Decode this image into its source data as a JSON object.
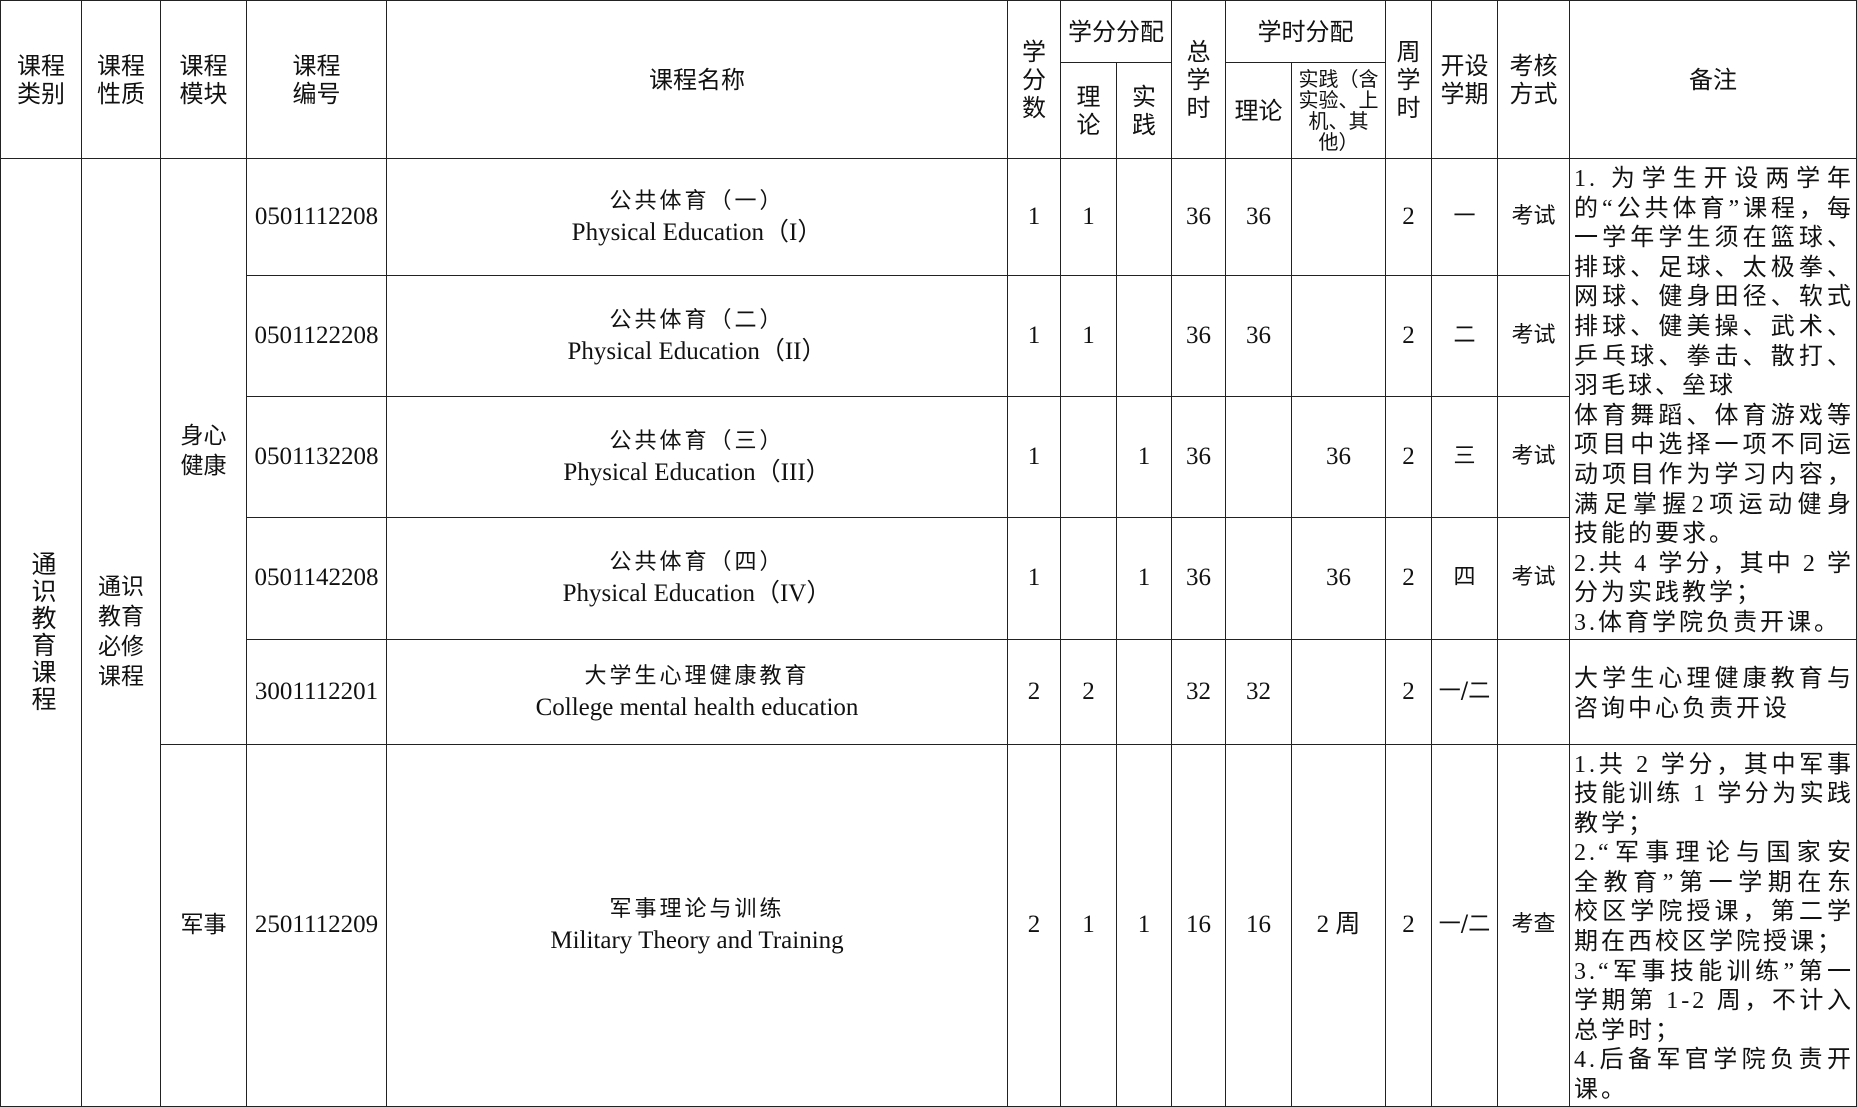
{
  "header": {
    "category": "课程类别",
    "nature": "课程性质",
    "module": "课程模块",
    "code": "课程编号",
    "name": "课程名称",
    "credits": "学分数",
    "credit_split": "学分分配",
    "credit_theory": "理论",
    "credit_practice": "实践",
    "total_hours": "总学时",
    "hour_split": "学时分配",
    "hour_theory": "理论",
    "hour_practice": "实践（含实验、上机、其他）",
    "weekly_hours": "周学时",
    "semester": "开设学期",
    "assessment": "考核方式",
    "remarks": "备注"
  },
  "category": "通识教育课程",
  "nature": "通识教育必修课程",
  "modules": [
    "身心健康",
    "军事"
  ],
  "rows": [
    {
      "code": "0501112208",
      "name_cn": "公共体育（一）",
      "name_en": "Physical Education（I）",
      "credits": "1",
      "c_theory": "1",
      "c_practice": "",
      "total": "36",
      "h_theory": "36",
      "h_practice": "",
      "weekly": "2",
      "semester": "一",
      "assessment": "考试"
    },
    {
      "code": "0501122208",
      "name_cn": "公共体育（二）",
      "name_en": "Physical Education（II）",
      "credits": "1",
      "c_theory": "1",
      "c_practice": "",
      "total": "36",
      "h_theory": "36",
      "h_practice": "",
      "weekly": "2",
      "semester": "二",
      "assessment": "考试"
    },
    {
      "code": "0501132208",
      "name_cn": "公共体育（三）",
      "name_en": "Physical Education（III）",
      "credits": "1",
      "c_theory": "",
      "c_practice": "1",
      "total": "36",
      "h_theory": "",
      "h_practice": "36",
      "weekly": "2",
      "semester": "三",
      "assessment": "考试"
    },
    {
      "code": "0501142208",
      "name_cn": "公共体育（四）",
      "name_en": "Physical Education（IV）",
      "credits": "1",
      "c_theory": "",
      "c_practice": "1",
      "total": "36",
      "h_theory": "",
      "h_practice": "36",
      "weekly": "2",
      "semester": "四",
      "assessment": "考试"
    },
    {
      "code": "3001112201",
      "name_cn": "大学生心理健康教育",
      "name_en": "College mental health education",
      "credits": "2",
      "c_theory": "2",
      "c_practice": "",
      "total": "32",
      "h_theory": "32",
      "h_practice": "",
      "weekly": "2",
      "semester": "一/二",
      "assessment": ""
    },
    {
      "code": "2501112209",
      "name_cn": "军事理论与训练",
      "name_en": "Military Theory and Training",
      "credits": "2",
      "c_theory": "1",
      "c_practice": "1",
      "total": "16",
      "h_theory": "16",
      "h_practice": "2 周",
      "weekly": "2",
      "semester": "一/二",
      "assessment": "考查"
    }
  ],
  "remarks": {
    "pe": "1. 为学生开设两学年的“公共体育”课程，每一学年学生须在篮球、排球、足球、太极拳、网球、健身田径、软式排球、健美操、武术、乒乓球、拳击、散打、羽毛球、垒球\n体育舞蹈、体育游戏等项目中选择一项不同运动项目作为学习内容，满足掌握2项运动健身技能的要求。\n2.共 4 学分，其中 2 学分为实践教学；\n3.体育学院负责开课。",
    "mental": "大学生心理健康教育与咨询中心负责开设",
    "military": "1.共 2 学分，其中军事技能训练 1 学分为实践教学；\n2.“军事理论与国家安全教育”第一学期在东校区学院授课，第二学期在西校区学院授课；\n3.“军事技能训练”第一学期第 1-2 周，不计入总学时；\n4.后备军官学院负责开课。"
  }
}
